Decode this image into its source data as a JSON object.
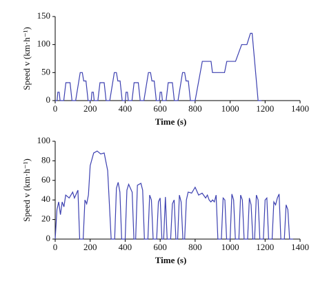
{
  "chart_data": [
    {
      "type": "line",
      "x_label": "Time (s)",
      "y_label": "Speed v (km·h⁻¹)",
      "xlim": [
        0,
        1400
      ],
      "xticks": [
        0,
        200,
        400,
        600,
        800,
        1000,
        1200,
        1400
      ],
      "ylim": [
        0,
        150
      ],
      "yticks": [
        0,
        50,
        100,
        150
      ],
      "grid": false,
      "color": "#3b3fb0",
      "x": [
        0,
        11,
        15,
        23,
        28,
        49,
        61,
        85,
        96,
        117,
        143,
        155,
        163,
        176,
        188,
        195,
        206,
        210,
        218,
        223,
        244,
        256,
        280,
        291,
        312,
        338,
        350,
        358,
        371,
        383,
        390,
        401,
        405,
        413,
        418,
        439,
        451,
        475,
        486,
        507,
        533,
        545,
        553,
        566,
        578,
        585,
        596,
        600,
        608,
        613,
        634,
        646,
        670,
        681,
        702,
        728,
        740,
        748,
        761,
        773,
        780,
        800,
        841,
        891,
        899,
        968,
        981,
        1031,
        1066,
        1096,
        1116,
        1126,
        1160,
        1180
      ],
      "values": [
        0,
        0,
        15,
        15,
        0,
        0,
        32,
        32,
        0,
        0,
        50,
        50,
        35,
        35,
        0,
        0,
        0,
        15,
        15,
        0,
        0,
        32,
        32,
        0,
        0,
        50,
        50,
        35,
        35,
        0,
        0,
        0,
        15,
        15,
        0,
        0,
        32,
        32,
        0,
        0,
        50,
        50,
        35,
        35,
        0,
        0,
        0,
        15,
        15,
        0,
        0,
        32,
        32,
        0,
        0,
        50,
        50,
        35,
        35,
        0,
        0,
        0,
        70,
        70,
        50,
        50,
        70,
        70,
        100,
        100,
        120,
        120,
        0,
        0
      ]
    },
    {
      "type": "line",
      "x_label": "Time (s)",
      "y_label": "Speed v (km·h⁻¹)",
      "xlim": [
        0,
        1400
      ],
      "xticks": [
        0,
        200,
        400,
        600,
        800,
        1000,
        1200,
        1400
      ],
      "ylim": [
        0,
        100
      ],
      "yticks": [
        0,
        20,
        40,
        60,
        80,
        100
      ],
      "grid": false,
      "color": "#3b3fb0",
      "x": [
        0,
        10,
        20,
        30,
        40,
        50,
        60,
        80,
        100,
        110,
        130,
        140,
        160,
        170,
        180,
        190,
        200,
        220,
        240,
        260,
        280,
        300,
        320,
        340,
        350,
        360,
        370,
        380,
        400,
        410,
        420,
        440,
        450,
        460,
        470,
        490,
        500,
        510,
        530,
        540,
        550,
        560,
        580,
        590,
        600,
        610,
        620,
        630,
        640,
        660,
        670,
        680,
        690,
        700,
        710,
        720,
        730,
        740,
        750,
        760,
        780,
        800,
        820,
        840,
        860,
        870,
        880,
        890,
        900,
        910,
        920,
        930,
        950,
        960,
        970,
        980,
        1000,
        1010,
        1020,
        1030,
        1050,
        1060,
        1070,
        1080,
        1100,
        1110,
        1120,
        1130,
        1140,
        1150,
        1160,
        1170,
        1190,
        1200,
        1210,
        1220,
        1240,
        1250,
        1260,
        1270,
        1280,
        1290,
        1310,
        1320,
        1330,
        1340,
        1360
      ],
      "values": [
        0,
        30,
        38,
        25,
        38,
        33,
        45,
        42,
        48,
        42,
        50,
        0,
        0,
        40,
        36,
        45,
        75,
        88,
        90,
        87,
        88,
        70,
        0,
        0,
        52,
        58,
        48,
        0,
        0,
        50,
        56,
        48,
        0,
        0,
        55,
        57,
        50,
        0,
        0,
        45,
        40,
        0,
        0,
        38,
        42,
        0,
        0,
        43,
        0,
        0,
        36,
        40,
        0,
        0,
        45,
        38,
        0,
        0,
        40,
        48,
        47,
        53,
        45,
        47,
        42,
        45,
        40,
        38,
        40,
        38,
        45,
        0,
        0,
        42,
        40,
        0,
        0,
        46,
        40,
        0,
        0,
        45,
        40,
        0,
        0,
        42,
        35,
        0,
        0,
        45,
        40,
        0,
        0,
        40,
        42,
        0,
        0,
        38,
        35,
        42,
        46,
        0,
        0,
        35,
        30,
        0,
        0
      ]
    }
  ]
}
